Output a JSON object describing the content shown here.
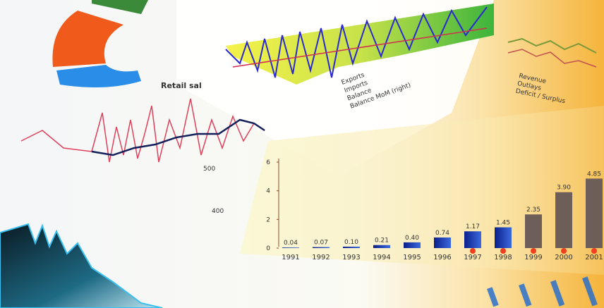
{
  "retail_chart": {
    "title": "Retail sal",
    "ticks": [
      500,
      400
    ]
  },
  "trade_chart": {
    "legend": [
      "Exports",
      "Imports",
      "Balance",
      "Balance MoM (right)"
    ]
  },
  "budget_chart": {
    "legend": [
      "Revenue",
      "Outlays",
      "Deficit / Surplus"
    ]
  },
  "bar_chart": {
    "categories": [
      "1991",
      "1992",
      "1993",
      "1994",
      "1995",
      "1996",
      "1997",
      "1998",
      "1999",
      "2000",
      "2001"
    ],
    "values": [
      0.04,
      0.07,
      0.1,
      0.21,
      0.4,
      0.74,
      1.17,
      1.45,
      2.35,
      3.9,
      4.85
    ],
    "value_labels": [
      "0.04",
      "0.07",
      "0.10",
      "0.21",
      "0.40",
      "0.74",
      "1.17",
      "1.45",
      "2.35",
      "3.90",
      "4.85"
    ],
    "ylim": [
      0,
      6
    ],
    "yticks": [
      0,
      2,
      4,
      6
    ]
  }
}
